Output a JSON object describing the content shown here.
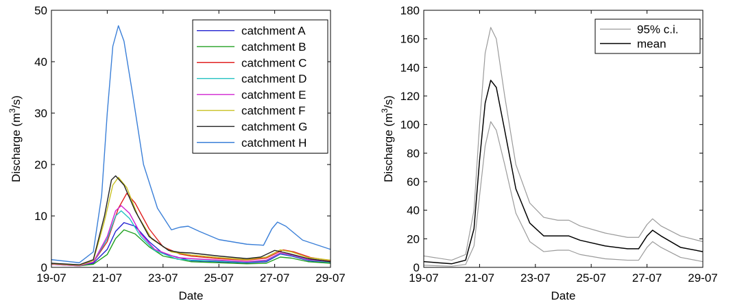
{
  "chart_data": [
    {
      "type": "line",
      "title": "",
      "xlabel": "Date",
      "ylabel_main": "Discharge (m",
      "ylabel_sup": "3",
      "ylabel_tail": "/s)",
      "xlim": [
        0,
        10
      ],
      "ylim": [
        0,
        50
      ],
      "x_ticks": [
        0,
        2,
        4,
        6,
        8,
        10
      ],
      "x_tick_labels": [
        "19-07",
        "21-07",
        "23-07",
        "25-07",
        "27-07",
        "29-07"
      ],
      "y_ticks": [
        0,
        10,
        20,
        30,
        40,
        50
      ],
      "y_tick_labels": [
        "0",
        "10",
        "20",
        "30",
        "40",
        "50"
      ],
      "legend_position": "top-right",
      "series": [
        {
          "name": "catchment A",
          "color": "#2020d0",
          "points": [
            [
              0,
              0.7
            ],
            [
              1,
              0.4
            ],
            [
              1.5,
              0.8
            ],
            [
              2,
              3.5
            ],
            [
              2.3,
              7
            ],
            [
              2.6,
              8.7
            ],
            [
              3,
              8
            ],
            [
              3.5,
              5
            ],
            [
              4,
              2.7
            ],
            [
              5,
              1.3
            ],
            [
              6,
              1.1
            ],
            [
              7,
              0.9
            ],
            [
              7.7,
              1.1
            ],
            [
              8.2,
              2.6
            ],
            [
              8.6,
              2.2
            ],
            [
              9.2,
              1.3
            ],
            [
              10,
              0.9
            ]
          ]
        },
        {
          "name": "catchment B",
          "color": "#20a020",
          "points": [
            [
              0,
              0.6
            ],
            [
              1,
              0.3
            ],
            [
              1.5,
              0.6
            ],
            [
              2,
              2.5
            ],
            [
              2.3,
              5.6
            ],
            [
              2.6,
              7.3
            ],
            [
              3,
              6.5
            ],
            [
              3.5,
              4
            ],
            [
              4,
              2.2
            ],
            [
              5,
              1.1
            ],
            [
              6,
              0.9
            ],
            [
              7,
              0.7
            ],
            [
              7.7,
              0.8
            ],
            [
              8.2,
              2
            ],
            [
              8.6,
              1.8
            ],
            [
              9.2,
              1.1
            ],
            [
              10,
              0.8
            ]
          ]
        },
        {
          "name": "catchment C",
          "color": "#e02020",
          "points": [
            [
              0,
              0.7
            ],
            [
              1,
              0.4
            ],
            [
              1.5,
              1
            ],
            [
              2,
              5
            ],
            [
              2.4,
              11.5
            ],
            [
              2.7,
              14.4
            ],
            [
              3,
              12.5
            ],
            [
              3.5,
              7.5
            ],
            [
              4,
              4
            ],
            [
              4.6,
              2.6
            ],
            [
              5,
              2.2
            ],
            [
              6,
              1.7
            ],
            [
              7,
              1.4
            ],
            [
              7.7,
              1.8
            ],
            [
              8.3,
              3.4
            ],
            [
              8.7,
              3
            ],
            [
              9.3,
              1.9
            ],
            [
              10,
              1.3
            ]
          ]
        },
        {
          "name": "catchment D",
          "color": "#20c0c0",
          "points": [
            [
              0,
              0.7
            ],
            [
              1,
              0.4
            ],
            [
              1.5,
              1
            ],
            [
              2,
              5.5
            ],
            [
              2.3,
              10
            ],
            [
              2.5,
              11
            ],
            [
              2.8,
              9.5
            ],
            [
              3.2,
              6
            ],
            [
              3.7,
              3.3
            ],
            [
              4.5,
              1.6
            ],
            [
              5,
              1.4
            ],
            [
              6,
              1.2
            ],
            [
              7,
              1
            ],
            [
              7.7,
              1.3
            ],
            [
              8.2,
              2.7
            ],
            [
              8.6,
              2.3
            ],
            [
              9.2,
              1.4
            ],
            [
              10,
              1
            ]
          ]
        },
        {
          "name": "catchment E",
          "color": "#d020d0",
          "points": [
            [
              0,
              0.6
            ],
            [
              1,
              0.3
            ],
            [
              1.5,
              1
            ],
            [
              2,
              6
            ],
            [
              2.3,
              11
            ],
            [
              2.5,
              12
            ],
            [
              2.8,
              10.5
            ],
            [
              3.2,
              6.5
            ],
            [
              3.7,
              3.5
            ],
            [
              4.5,
              1.9
            ],
            [
              5,
              1.7
            ],
            [
              6,
              1.4
            ],
            [
              7,
              1.1
            ],
            [
              7.7,
              1.4
            ],
            [
              8.2,
              2.8
            ],
            [
              8.6,
              2.4
            ],
            [
              9.2,
              1.5
            ],
            [
              10,
              1.1
            ]
          ]
        },
        {
          "name": "catchment F",
          "color": "#c8c020",
          "points": [
            [
              0,
              0.7
            ],
            [
              1,
              0.4
            ],
            [
              1.5,
              1.3
            ],
            [
              1.9,
              9
            ],
            [
              2.2,
              16
            ],
            [
              2.4,
              17.5
            ],
            [
              2.7,
              15.5
            ],
            [
              3.1,
              10
            ],
            [
              3.6,
              5.5
            ],
            [
              4.3,
              3
            ],
            [
              5,
              2.4
            ],
            [
              6,
              1.9
            ],
            [
              7,
              1.5
            ],
            [
              7.7,
              2
            ],
            [
              8.2,
              3.4
            ],
            [
              8.6,
              3
            ],
            [
              9.2,
              1.9
            ],
            [
              10,
              1.4
            ]
          ]
        },
        {
          "name": "catchment G",
          "color": "#202020",
          "points": [
            [
              0,
              0.8
            ],
            [
              1,
              0.5
            ],
            [
              1.5,
              1.5
            ],
            [
              1.9,
              10
            ],
            [
              2.15,
              17
            ],
            [
              2.3,
              17.8
            ],
            [
              2.6,
              16
            ],
            [
              3,
              11
            ],
            [
              3.5,
              6
            ],
            [
              4.2,
              3.3
            ],
            [
              4.6,
              2.9
            ],
            [
              5,
              2.8
            ],
            [
              6,
              2.2
            ],
            [
              7,
              1.7
            ],
            [
              7.5,
              2
            ],
            [
              8,
              3.3
            ],
            [
              8.5,
              2.7
            ],
            [
              9.2,
              1.7
            ],
            [
              10,
              1.1
            ]
          ]
        },
        {
          "name": "catchment H",
          "color": "#3a7fd8",
          "points": [
            [
              0,
              1.5
            ],
            [
              1,
              0.9
            ],
            [
              1.5,
              3
            ],
            [
              1.8,
              14
            ],
            [
              2,
              30
            ],
            [
              2.2,
              43
            ],
            [
              2.4,
              47
            ],
            [
              2.6,
              44
            ],
            [
              2.9,
              34
            ],
            [
              3.3,
              20
            ],
            [
              3.8,
              11.5
            ],
            [
              4.3,
              7.3
            ],
            [
              4.6,
              7.8
            ],
            [
              4.9,
              8
            ],
            [
              5.3,
              7
            ],
            [
              6,
              5.4
            ],
            [
              7,
              4.5
            ],
            [
              7.6,
              4.3
            ],
            [
              7.9,
              7.5
            ],
            [
              8.1,
              8.8
            ],
            [
              8.4,
              8
            ],
            [
              9,
              5.3
            ],
            [
              10,
              3.5
            ]
          ]
        }
      ]
    },
    {
      "type": "line",
      "title": "",
      "xlabel": "Date",
      "ylabel_main": "Discharge (m",
      "ylabel_sup": "3",
      "ylabel_tail": "/s)",
      "xlim": [
        0,
        10
      ],
      "ylim": [
        0,
        180
      ],
      "x_ticks": [
        0,
        2,
        4,
        6,
        8,
        10
      ],
      "x_tick_labels": [
        "19-07",
        "21-07",
        "23-07",
        "25-07",
        "27-07",
        "29-07"
      ],
      "y_ticks": [
        0,
        20,
        40,
        60,
        80,
        100,
        120,
        140,
        160,
        180
      ],
      "y_tick_labels": [
        "0",
        "20",
        "40",
        "60",
        "80",
        "100",
        "120",
        "140",
        "160",
        "180"
      ],
      "legend_position": "top-right",
      "series": [
        {
          "name": "95% c.i.",
          "color": "#9a9a9a",
          "width": 1.2,
          "points": [
            [
              0,
              8
            ],
            [
              1,
              5
            ],
            [
              1.5,
              9
            ],
            [
              1.8,
              40
            ],
            [
              2,
              100
            ],
            [
              2.2,
              150
            ],
            [
              2.4,
              168
            ],
            [
              2.6,
              160
            ],
            [
              2.9,
              120
            ],
            [
              3.3,
              72
            ],
            [
              3.8,
              45
            ],
            [
              4.3,
              35
            ],
            [
              4.8,
              33
            ],
            [
              5.2,
              33
            ],
            [
              5.6,
              29
            ],
            [
              6.5,
              24
            ],
            [
              7.3,
              21
            ],
            [
              7.7,
              21
            ],
            [
              8,
              30
            ],
            [
              8.2,
              34
            ],
            [
              8.5,
              29
            ],
            [
              9.2,
              22
            ],
            [
              10,
              18
            ]
          ]
        },
        {
          "name": "",
          "color": "#9a9a9a",
          "width": 1.2,
          "points": [
            [
              0,
              1.5
            ],
            [
              1,
              0.8
            ],
            [
              1.5,
              2
            ],
            [
              1.8,
              15
            ],
            [
              2,
              50
            ],
            [
              2.2,
              85
            ],
            [
              2.4,
              102
            ],
            [
              2.6,
              96
            ],
            [
              2.9,
              72
            ],
            [
              3.3,
              38
            ],
            [
              3.8,
              18
            ],
            [
              4.3,
              11
            ],
            [
              4.8,
              12
            ],
            [
              5.2,
              12
            ],
            [
              5.6,
              9
            ],
            [
              6.5,
              6
            ],
            [
              7.3,
              5
            ],
            [
              7.7,
              5
            ],
            [
              8,
              14
            ],
            [
              8.2,
              18
            ],
            [
              8.5,
              14
            ],
            [
              9.2,
              7
            ],
            [
              10,
              4
            ]
          ]
        },
        {
          "name": "mean",
          "color": "#000000",
          "width": 1.5,
          "points": [
            [
              0,
              4
            ],
            [
              1,
              2.5
            ],
            [
              1.5,
              5
            ],
            [
              1.8,
              27
            ],
            [
              2,
              75
            ],
            [
              2.2,
              115
            ],
            [
              2.4,
              131
            ],
            [
              2.6,
              126
            ],
            [
              2.9,
              96
            ],
            [
              3.3,
              55
            ],
            [
              3.8,
              31
            ],
            [
              4.3,
              22
            ],
            [
              4.8,
              22
            ],
            [
              5.2,
              22
            ],
            [
              5.6,
              19
            ],
            [
              6.5,
              15
            ],
            [
              7.3,
              13
            ],
            [
              7.7,
              13
            ],
            [
              8,
              22
            ],
            [
              8.2,
              26
            ],
            [
              8.5,
              22
            ],
            [
              9.2,
              14
            ],
            [
              10,
              11
            ]
          ]
        }
      ]
    }
  ]
}
